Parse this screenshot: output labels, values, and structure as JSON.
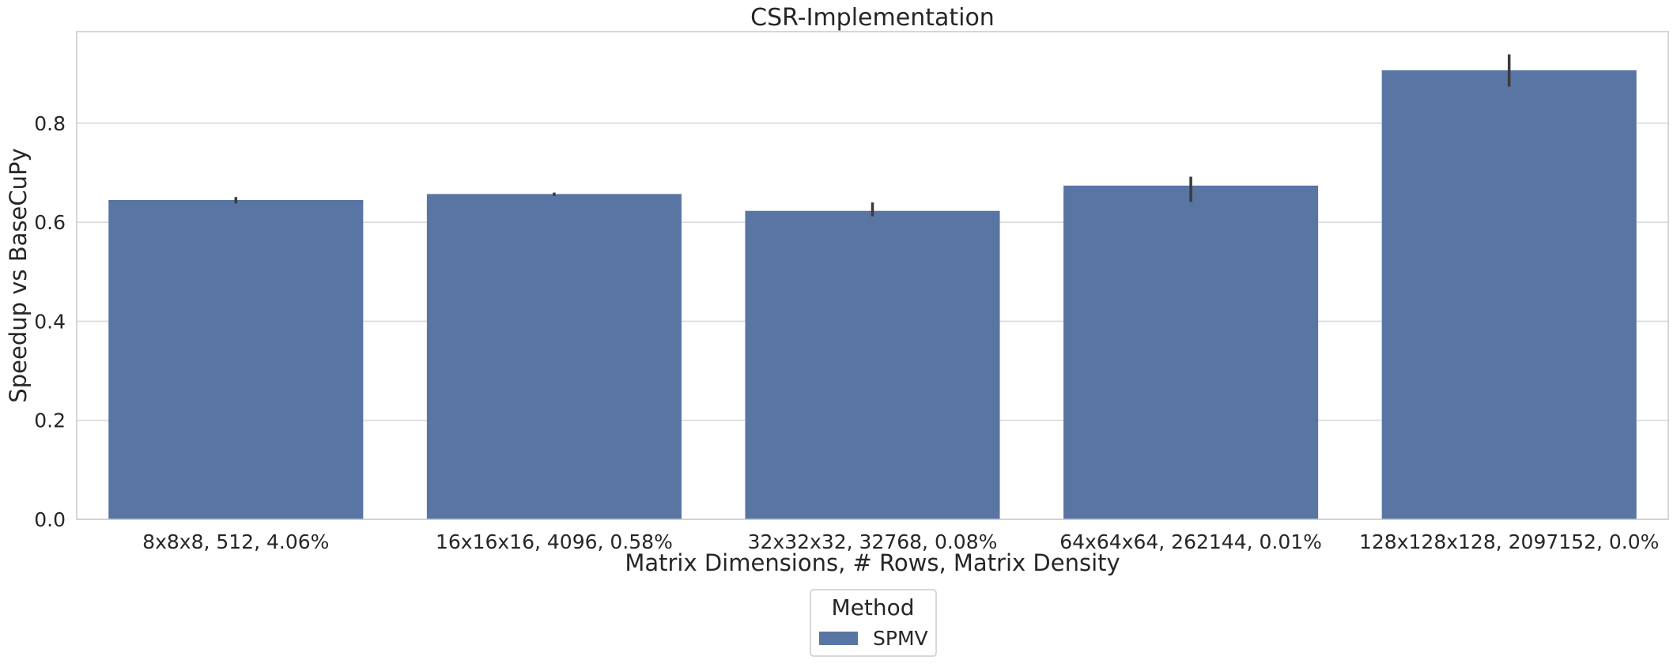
{
  "chart_data": {
    "type": "bar",
    "title": "CSR-Implementation",
    "xlabel": "Matrix Dimensions, # Rows, Matrix Density",
    "ylabel": "Speedup vs BaseCuPy",
    "categories": [
      "8x8x8, 512, 4.06%",
      "16x16x16, 4096, 0.58%",
      "32x32x32, 32768, 0.08%",
      "64x64x64, 262144, 0.01%",
      "128x128x128, 2097152, 0.0%"
    ],
    "series": [
      {
        "name": "SPMV",
        "values": [
          0.645,
          0.657,
          0.623,
          0.674,
          0.907
        ],
        "error_low": [
          0.638,
          0.653,
          0.612,
          0.641,
          0.874
        ],
        "error_high": [
          0.651,
          0.66,
          0.64,
          0.692,
          0.939
        ],
        "color": "#5975a4"
      }
    ],
    "ylim": [
      0,
      0.985
    ],
    "yticks": [
      0.0,
      0.2,
      0.4,
      0.6,
      0.8
    ],
    "ytick_labels": [
      "0.0",
      "0.2",
      "0.4",
      "0.6",
      "0.8"
    ],
    "grid": true,
    "legend": {
      "title": "Method",
      "placement": "below-center",
      "entries": [
        "SPMV"
      ]
    }
  }
}
